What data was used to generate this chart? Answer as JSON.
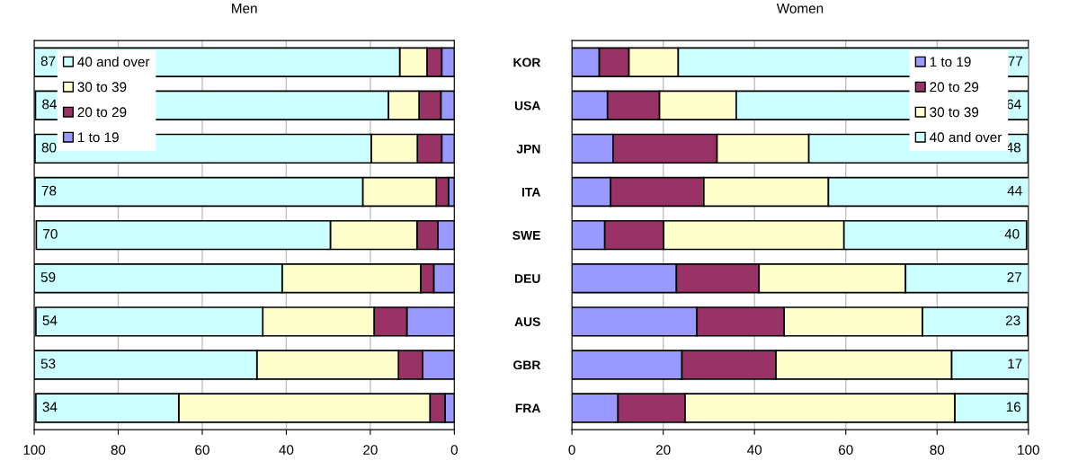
{
  "chart_data": [
    {
      "type": "bar",
      "orientation": "horizontal",
      "stacked": true,
      "title": "Men",
      "categories": [
        null,
        null,
        null,
        null,
        null,
        null,
        null,
        null,
        null
      ],
      "xlim": [
        100,
        0
      ],
      "xticks": [
        100,
        80,
        60,
        40,
        20,
        0
      ],
      "grid": "x",
      "legend": "top left",
      "tick_labels": "x",
      "series": [
        {
          "name": "1 to 19",
          "color": "#9999ff",
          "values": [
            3,
            3.2,
            3,
            1.4,
            3.9,
            4.9,
            11.3,
            7.6,
            2.2
          ]
        },
        {
          "name": "20 to 29",
          "color": "#993366",
          "values": [
            3.5,
            5.2,
            5.8,
            2.9,
            5,
            3.1,
            7.8,
            5.7,
            3.6
          ]
        },
        {
          "name": "30 to 39",
          "color": "#ffffcc",
          "values": [
            6.5,
            7.3,
            11,
            17.5,
            20.6,
            33,
            26.5,
            33.7,
            59.8
          ]
        },
        {
          "name": "40 and over",
          "color": "#ccffff",
          "values": [
            87,
            84,
            80,
            78,
            70,
            59,
            54,
            53,
            34
          ],
          "value_labels": [
            "87",
            "84",
            "80",
            "78",
            "70",
            "59",
            "54",
            "53",
            "34"
          ]
        }
      ]
    },
    {
      "type": "bar",
      "orientation": "horizontal",
      "stacked": true,
      "title": "Women",
      "categories": [
        "KOR",
        "USA",
        "JPN",
        "ITA",
        "SWE",
        "DEU",
        "AUS",
        "GBR",
        "FRA"
      ],
      "xlim": [
        0,
        100
      ],
      "xticks": [
        0,
        20,
        40,
        60,
        80,
        100
      ],
      "grid": "x",
      "legend": "top right",
      "series": [
        {
          "name": "1 to 19",
          "color": "#9999ff",
          "values": [
            6,
            7.8,
            9,
            8.5,
            7.2,
            22.9,
            27.4,
            24.1,
            10.1
          ]
        },
        {
          "name": "20 to 29",
          "color": "#993366",
          "values": [
            6.5,
            11.4,
            22.8,
            20.4,
            12.9,
            18.1,
            19.1,
            20.6,
            14.7
          ]
        },
        {
          "name": "30 to 39",
          "color": "#ffffcc",
          "values": [
            10.8,
            16.8,
            20.1,
            27.3,
            39.5,
            32.1,
            30.3,
            38.5,
            59.1
          ]
        },
        {
          "name": "40 and over",
          "color": "#ccffff",
          "values": [
            77,
            64,
            48,
            44,
            40,
            27,
            23,
            17,
            16
          ],
          "value_labels": [
            "77",
            "64",
            "48",
            "44",
            "40",
            "27",
            "23",
            "17",
            "16"
          ]
        }
      ]
    }
  ]
}
